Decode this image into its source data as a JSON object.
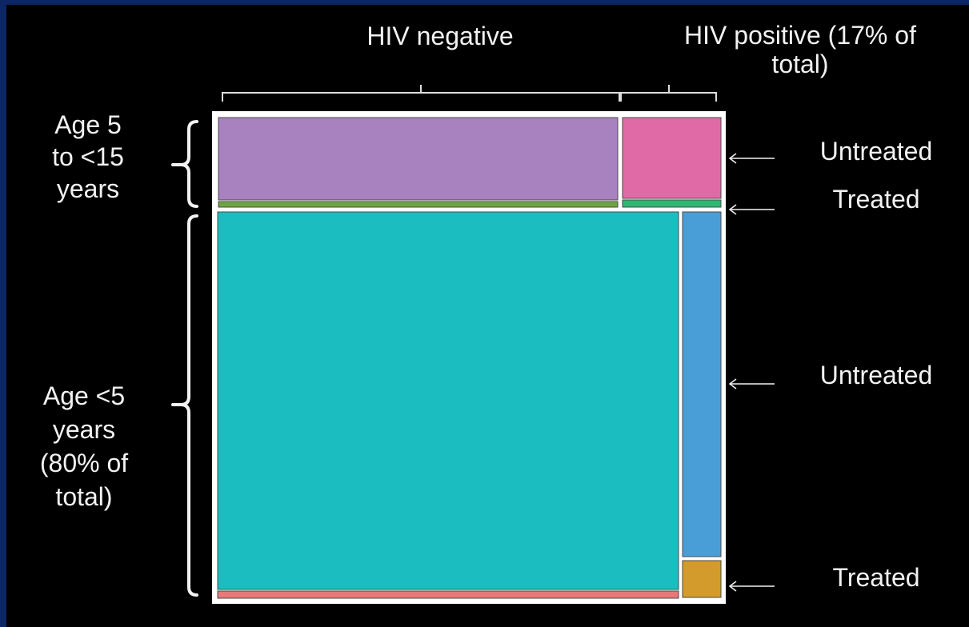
{
  "labels": {
    "col_hiv_negative": "HIV negative",
    "col_hiv_positive": "HIV positive (17% of\ntotal)",
    "row_age_5_15": "Age 5\nto <15\nyears",
    "row_age_under5": "Age <5\nyears\n(80% of\ntotal)",
    "top_untreated": "Untreated",
    "top_treated": "Treated",
    "bottom_untreated": "Untreated",
    "bottom_treated": "Treated"
  },
  "colors": {
    "page_border": "#0b2663",
    "background": "#000000",
    "frame": "#ffffff",
    "text": "#f2f2f2",
    "age5_15_hivneg_untreated": "#a882bf",
    "age5_15_hivneg_treated": "#6fa541",
    "age5_15_hivpos_untreated": "#e06aa6",
    "age5_15_hivpos_treated": "#2fb673",
    "under5_hivneg_untreated": "#1bbdc1",
    "under5_hivneg_treated": "#e8787a",
    "under5_hivpos_untreated": "#4a9ed8",
    "under5_hivpos_treated": "#d29b2b"
  }
}
